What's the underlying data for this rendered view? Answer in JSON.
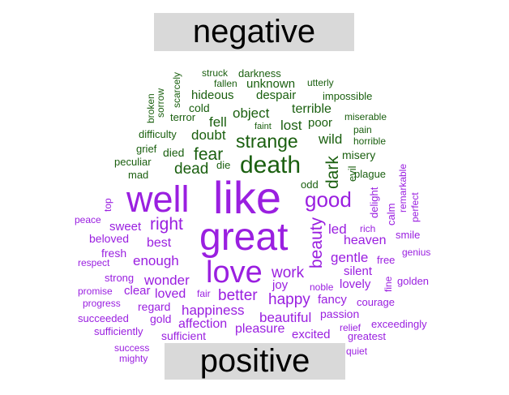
{
  "headers": {
    "negative": "negative",
    "positive": "positive"
  },
  "colors": {
    "negative": "#1a5f0f",
    "positive": "#9a1fe0",
    "header_bg": "#d9d9d9"
  },
  "negative_words": [
    "struck",
    "darkness",
    "fallen",
    "unknown",
    "utterly",
    "scarcely",
    "hideous",
    "despair",
    "impossible",
    "broken",
    "sorrow",
    "cold",
    "terrible",
    "terror",
    "object",
    "miserable",
    "fell",
    "faint",
    "lost",
    "poor",
    "pain",
    "difficulty",
    "doubt",
    "strange",
    "wild",
    "horrible",
    "grief",
    "died",
    "fear",
    "misery",
    "peculiar",
    "death",
    "die",
    "dead",
    "dark",
    "evil",
    "plague",
    "mad",
    "odd"
  ],
  "positive_words": [
    "well",
    "like",
    "great",
    "good",
    "top",
    "delight",
    "remarkable",
    "calm",
    "perfect",
    "peace",
    "sweet",
    "right",
    "led",
    "rich",
    "smile",
    "beloved",
    "best",
    "heaven",
    "fresh",
    "gentle",
    "free",
    "genius",
    "respect",
    "enough",
    "beauty",
    "love",
    "work",
    "silent",
    "strong",
    "wonder",
    "joy",
    "lovely",
    "fine",
    "golden",
    "promise",
    "clear",
    "loved",
    "fair",
    "better",
    "happy",
    "noble",
    "fancy",
    "courage",
    "progress",
    "regard",
    "happiness",
    "passion",
    "succeeded",
    "gold",
    "affection",
    "beautiful",
    "relief",
    "exceedingly",
    "sufficiently",
    "sufficient",
    "pleasure",
    "excited",
    "greatest",
    "success",
    "quiet",
    "mighty"
  ]
}
